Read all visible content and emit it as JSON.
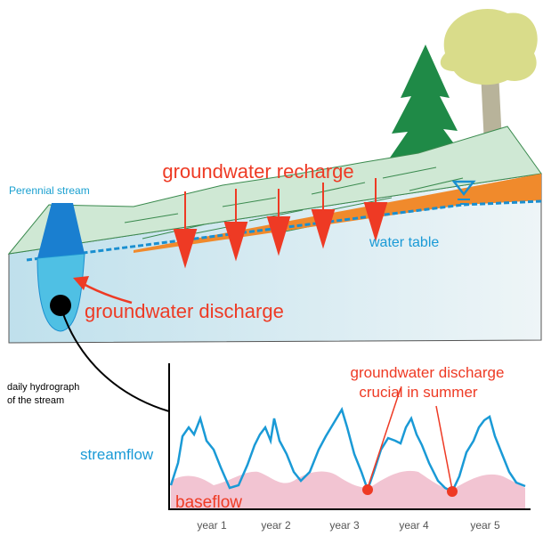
{
  "block_diagram": {
    "stream_label": "Perennial stream",
    "recharge_label": "groundwater recharge",
    "water_table_label": "water table",
    "discharge_label": "groundwater discharge"
  },
  "hydrograph": {
    "caption": [
      "daily hydrograph",
      "of the stream"
    ],
    "streamflow_label": "streamflow",
    "baseflow_label": "baseflow",
    "annotation": [
      "groundwater discharge",
      "crucial in summer"
    ],
    "x_labels": [
      "year 1",
      "year 2",
      "year 3",
      "year 4",
      "year 5"
    ]
  }
}
